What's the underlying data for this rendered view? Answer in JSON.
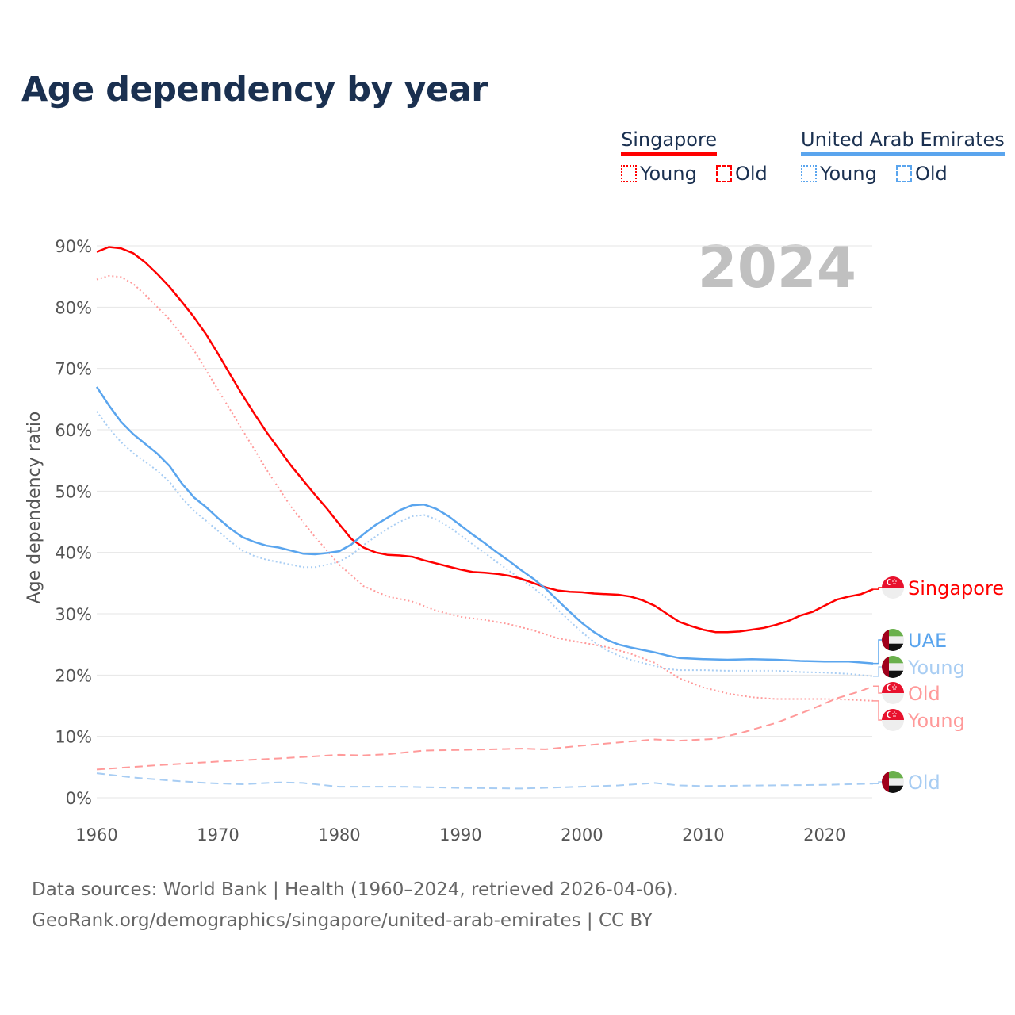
{
  "title": "Age dependency by year",
  "legend": {
    "countries": [
      {
        "name": "Singapore",
        "color": "#ff0000",
        "light": "#ff9a9a",
        "items": [
          "Young",
          "Old"
        ]
      },
      {
        "name": "United Arab Emirates",
        "color": "#5aa5ee",
        "light": "#a8cdf3",
        "items": [
          "Young",
          "Old"
        ]
      }
    ]
  },
  "year_display": "2024",
  "footer": {
    "line1": "Data sources: World Bank | Health (1960–2024, retrieved 2026-04-06).",
    "line2": "GeoRank.org/demographics/singapore/united-arab-emirates | CC BY"
  },
  "chart_data": {
    "type": "line",
    "title": "Age dependency by year",
    "xlabel": "",
    "ylabel": "Age dependency ratio",
    "xlim": [
      1960,
      2024
    ],
    "ylim": [
      0,
      90
    ],
    "xticks": [
      "1960",
      "1970",
      "1980",
      "1990",
      "2000",
      "2010",
      "2020"
    ],
    "yticks": [
      "0%",
      "10%",
      "20%",
      "30%",
      "40%",
      "50%",
      "60%",
      "70%",
      "80%",
      "90%"
    ],
    "grid": true,
    "series": [
      {
        "name": "Singapore",
        "label": "Singapore",
        "country": "sg",
        "style": "solid",
        "color": "#ff0000",
        "points": [
          [
            1960,
            89
          ],
          [
            1961,
            89.8
          ],
          [
            1962,
            89.6
          ],
          [
            1963,
            88.8
          ],
          [
            1964,
            87.3
          ],
          [
            1965,
            85.4
          ],
          [
            1966,
            83.3
          ],
          [
            1967,
            80.9
          ],
          [
            1968,
            78.4
          ],
          [
            1969,
            75.6
          ],
          [
            1970,
            72.4
          ],
          [
            1971,
            69.0
          ],
          [
            1972,
            65.7
          ],
          [
            1973,
            62.6
          ],
          [
            1974,
            59.6
          ],
          [
            1975,
            56.9
          ],
          [
            1976,
            54.2
          ],
          [
            1977,
            51.8
          ],
          [
            1978,
            49.4
          ],
          [
            1979,
            47.1
          ],
          [
            1980,
            44.6
          ],
          [
            1981,
            42.2
          ],
          [
            1982,
            40.8
          ],
          [
            1983,
            40.0
          ],
          [
            1984,
            39.6
          ],
          [
            1985,
            39.5
          ],
          [
            1986,
            39.3
          ],
          [
            1987,
            38.7
          ],
          [
            1988,
            38.2
          ],
          [
            1989,
            37.7
          ],
          [
            1990,
            37.2
          ],
          [
            1991,
            36.8
          ],
          [
            1992,
            36.7
          ],
          [
            1993,
            36.5
          ],
          [
            1994,
            36.2
          ],
          [
            1995,
            35.7
          ],
          [
            1996,
            35.0
          ],
          [
            1997,
            34.3
          ],
          [
            1998,
            33.8
          ],
          [
            1999,
            33.6
          ],
          [
            2000,
            33.5
          ],
          [
            2001,
            33.3
          ],
          [
            2002,
            33.2
          ],
          [
            2003,
            33.1
          ],
          [
            2004,
            32.8
          ],
          [
            2005,
            32.2
          ],
          [
            2006,
            31.3
          ],
          [
            2007,
            30.0
          ],
          [
            2008,
            28.7
          ],
          [
            2009,
            28.0
          ],
          [
            2010,
            27.4
          ],
          [
            2011,
            27.0
          ],
          [
            2012,
            27.0
          ],
          [
            2013,
            27.1
          ],
          [
            2014,
            27.4
          ],
          [
            2015,
            27.7
          ],
          [
            2016,
            28.2
          ],
          [
            2017,
            28.8
          ],
          [
            2018,
            29.7
          ],
          [
            2019,
            30.3
          ],
          [
            2020,
            31.3
          ],
          [
            2021,
            32.3
          ],
          [
            2022,
            32.8
          ],
          [
            2023,
            33.2
          ],
          [
            2024,
            34.0
          ]
        ]
      },
      {
        "name": "Singapore Young",
        "label": "Young",
        "country": "sg",
        "style": "dotted",
        "color": "#ff9a9a",
        "points": [
          [
            1960,
            84.5
          ],
          [
            1961,
            85.1
          ],
          [
            1962,
            84.9
          ],
          [
            1963,
            83.8
          ],
          [
            1964,
            82
          ],
          [
            1966,
            78
          ],
          [
            1968,
            73
          ],
          [
            1970,
            66.5
          ],
          [
            1972,
            60
          ],
          [
            1974,
            53.5
          ],
          [
            1976,
            47.5
          ],
          [
            1978,
            42.5
          ],
          [
            1980,
            38
          ],
          [
            1982,
            34.5
          ],
          [
            1984,
            32.8
          ],
          [
            1986,
            32
          ],
          [
            1988,
            30.5
          ],
          [
            1990,
            29.5
          ],
          [
            1992,
            29
          ],
          [
            1994,
            28.3
          ],
          [
            1996,
            27.3
          ],
          [
            1998,
            26
          ],
          [
            2000,
            25.3
          ],
          [
            2002,
            24.6
          ],
          [
            2004,
            23.5
          ],
          [
            2006,
            22
          ],
          [
            2008,
            19.5
          ],
          [
            2010,
            18
          ],
          [
            2012,
            17
          ],
          [
            2014,
            16.4
          ],
          [
            2016,
            16.1
          ],
          [
            2018,
            16.1
          ],
          [
            2020,
            16.1
          ],
          [
            2022,
            16
          ],
          [
            2024,
            15.8
          ]
        ]
      },
      {
        "name": "Singapore Old",
        "label": "Old",
        "country": "sg",
        "style": "dashed",
        "color": "#ff9a9a",
        "points": [
          [
            1960,
            4.6
          ],
          [
            1965,
            5.3
          ],
          [
            1970,
            5.9
          ],
          [
            1975,
            6.4
          ],
          [
            1980,
            7.0
          ],
          [
            1982,
            6.9
          ],
          [
            1984,
            7.1
          ],
          [
            1987,
            7.7
          ],
          [
            1990,
            7.8
          ],
          [
            1995,
            8.0
          ],
          [
            1997,
            7.9
          ],
          [
            2000,
            8.5
          ],
          [
            2003,
            9.0
          ],
          [
            2006,
            9.5
          ],
          [
            2008,
            9.3
          ],
          [
            2011,
            9.6
          ],
          [
            2013,
            10.5
          ],
          [
            2016,
            12.2
          ],
          [
            2019,
            14.5
          ],
          [
            2021,
            16.2
          ],
          [
            2023,
            17.4
          ],
          [
            2024,
            18.2
          ]
        ]
      },
      {
        "name": "United Arab Emirates",
        "label": "UAE",
        "country": "ae",
        "style": "solid",
        "color": "#5aa5ee",
        "points": [
          [
            1960,
            67
          ],
          [
            1961,
            64
          ],
          [
            1962,
            61.3
          ],
          [
            1963,
            59.3
          ],
          [
            1964,
            57.7
          ],
          [
            1965,
            56.1
          ],
          [
            1966,
            54.1
          ],
          [
            1967,
            51.3
          ],
          [
            1968,
            49
          ],
          [
            1969,
            47.4
          ],
          [
            1970,
            45.6
          ],
          [
            1971,
            43.9
          ],
          [
            1972,
            42.5
          ],
          [
            1973,
            41.7
          ],
          [
            1974,
            41.1
          ],
          [
            1975,
            40.8
          ],
          [
            1976,
            40.3
          ],
          [
            1977,
            39.8
          ],
          [
            1978,
            39.7
          ],
          [
            1979,
            39.9
          ],
          [
            1980,
            40.2
          ],
          [
            1981,
            41.3
          ],
          [
            1982,
            43
          ],
          [
            1983,
            44.5
          ],
          [
            1984,
            45.7
          ],
          [
            1985,
            46.9
          ],
          [
            1986,
            47.7
          ],
          [
            1987,
            47.8
          ],
          [
            1988,
            47.1
          ],
          [
            1989,
            45.9
          ],
          [
            1990,
            44.4
          ],
          [
            1991,
            42.9
          ],
          [
            1992,
            41.5
          ],
          [
            1993,
            40
          ],
          [
            1994,
            38.6
          ],
          [
            1995,
            37.1
          ],
          [
            1996,
            35.7
          ],
          [
            1997,
            34.1
          ],
          [
            1998,
            32.2
          ],
          [
            1999,
            30.3
          ],
          [
            2000,
            28.5
          ],
          [
            2001,
            27
          ],
          [
            2002,
            25.8
          ],
          [
            2003,
            25
          ],
          [
            2004,
            24.5
          ],
          [
            2005,
            24.1
          ],
          [
            2006,
            23.7
          ],
          [
            2007,
            23.2
          ],
          [
            2008,
            22.8
          ],
          [
            2010,
            22.6
          ],
          [
            2012,
            22.5
          ],
          [
            2014,
            22.6
          ],
          [
            2016,
            22.5
          ],
          [
            2018,
            22.3
          ],
          [
            2020,
            22.2
          ],
          [
            2022,
            22.2
          ],
          [
            2024,
            21.9
          ]
        ]
      },
      {
        "name": "United Arab Emirates Young",
        "label": "Young",
        "country": "ae",
        "style": "dotted",
        "color": "#a8cdf3",
        "points": [
          [
            1960,
            63
          ],
          [
            1961,
            60.3
          ],
          [
            1962,
            58
          ],
          [
            1963,
            56.2
          ],
          [
            1964,
            54.8
          ],
          [
            1965,
            53.3
          ],
          [
            1966,
            51.5
          ],
          [
            1967,
            48.9
          ],
          [
            1968,
            46.8
          ],
          [
            1969,
            45.2
          ],
          [
            1970,
            43.5
          ],
          [
            1971,
            41.8
          ],
          [
            1972,
            40.3
          ],
          [
            1973,
            39.4
          ],
          [
            1974,
            38.8
          ],
          [
            1975,
            38.4
          ],
          [
            1976,
            38.0
          ],
          [
            1977,
            37.6
          ],
          [
            1978,
            37.6
          ],
          [
            1979,
            38.0
          ],
          [
            1980,
            38.5
          ],
          [
            1981,
            39.6
          ],
          [
            1982,
            41.2
          ],
          [
            1983,
            42.6
          ],
          [
            1984,
            43.9
          ],
          [
            1985,
            45.0
          ],
          [
            1986,
            45.9
          ],
          [
            1987,
            46.1
          ],
          [
            1988,
            45.4
          ],
          [
            1989,
            44.2
          ],
          [
            1990,
            42.8
          ],
          [
            1991,
            41.3
          ],
          [
            1992,
            39.9
          ],
          [
            1993,
            38.4
          ],
          [
            1994,
            37.0
          ],
          [
            1995,
            35.6
          ],
          [
            1996,
            34.2
          ],
          [
            1997,
            32.7
          ],
          [
            1998,
            30.7
          ],
          [
            1999,
            28.8
          ],
          [
            2000,
            27.0
          ],
          [
            2001,
            25.4
          ],
          [
            2002,
            24.1
          ],
          [
            2003,
            23.2
          ],
          [
            2004,
            22.5
          ],
          [
            2005,
            22.0
          ],
          [
            2006,
            21.5
          ],
          [
            2007,
            21.0
          ],
          [
            2008,
            20.8
          ],
          [
            2010,
            20.8
          ],
          [
            2012,
            20.7
          ],
          [
            2014,
            20.7
          ],
          [
            2016,
            20.7
          ],
          [
            2018,
            20.5
          ],
          [
            2020,
            20.4
          ],
          [
            2022,
            20.2
          ],
          [
            2024,
            19.8
          ]
        ]
      },
      {
        "name": "United Arab Emirates Old",
        "label": "Old",
        "country": "ae",
        "style": "dashed",
        "color": "#a8cdf3",
        "points": [
          [
            1960,
            4.0
          ],
          [
            1963,
            3.3
          ],
          [
            1966,
            2.8
          ],
          [
            1969,
            2.4
          ],
          [
            1972,
            2.2
          ],
          [
            1975,
            2.5
          ],
          [
            1977,
            2.4
          ],
          [
            1980,
            1.8
          ],
          [
            1985,
            1.8
          ],
          [
            1990,
            1.6
          ],
          [
            1995,
            1.5
          ],
          [
            2000,
            1.8
          ],
          [
            2003,
            2.0
          ],
          [
            2006,
            2.4
          ],
          [
            2008,
            2.0
          ],
          [
            2010,
            1.9
          ],
          [
            2015,
            2.0
          ],
          [
            2020,
            2.1
          ],
          [
            2024,
            2.3
          ]
        ]
      }
    ]
  }
}
